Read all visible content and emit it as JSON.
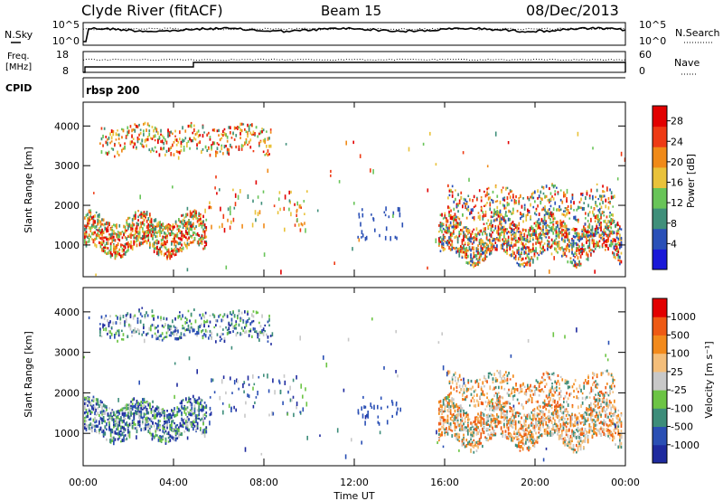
{
  "header": {
    "station": "Clyde River (fitACF)",
    "beam": "Beam 15",
    "date": "08/Dec/2013"
  },
  "status_panels": {
    "nsky": {
      "left_label": "N.Sky",
      "left_ticks": [
        "10^5",
        "10^0"
      ],
      "right_label": "N.Search",
      "right_ticks": [
        "10^5",
        "10^0"
      ]
    },
    "freq": {
      "left_label": "Freq.",
      "left_unit": "[MHz]",
      "left_ticks": [
        "18",
        "8"
      ],
      "right_label": "Nave",
      "right_ticks": [
        "60",
        "0"
      ]
    },
    "cpid": {
      "label": "CPID",
      "value": "rbsp 200"
    }
  },
  "chart_data": [
    {
      "type": "heatmap",
      "name": "power",
      "ylabel": "Slant Range [km]",
      "ylim": [
        200,
        4600
      ],
      "yticks": [
        "4000",
        "3000",
        "2000",
        "1000"
      ],
      "xlabel": "Time UT",
      "xlim": [
        "00:00",
        "24:00"
      ],
      "xticks": [
        "00:00",
        "04:00",
        "08:00",
        "12:00",
        "16:00",
        "20:00",
        "00:00"
      ],
      "colorbar": {
        "label": "Power [dB]",
        "ticks": [
          "28",
          "24",
          "20",
          "16",
          "12",
          "8",
          "4"
        ],
        "colors": [
          "#1a18d8",
          "#2a50b8",
          "#3f8f7a",
          "#68c458",
          "#e9c23a",
          "#f08a18",
          "#ee3a14",
          "#e20000"
        ]
      }
    },
    {
      "type": "heatmap",
      "name": "velocity",
      "ylabel": "Slant Range [km]",
      "ylim": [
        200,
        4600
      ],
      "yticks": [
        "4000",
        "3000",
        "2000",
        "1000"
      ],
      "xlabel": "Time UT",
      "xlim": [
        "00:00",
        "24:00"
      ],
      "xticks": [
        "00:00",
        "04:00",
        "08:00",
        "12:00",
        "16:00",
        "20:00",
        "00:00"
      ],
      "colorbar": {
        "label": "Velocity [m s⁻¹]",
        "ticks": [
          "1000",
          "500",
          "100",
          "25",
          "-25",
          "-100",
          "-500",
          "-1000"
        ],
        "colors": [
          "#1e2a9e",
          "#2a4fb4",
          "#3d8d7a",
          "#6cc444",
          "#c8c8c8",
          "#f4be7a",
          "#f28a1c",
          "#ee5a14",
          "#e20000"
        ]
      }
    }
  ]
}
